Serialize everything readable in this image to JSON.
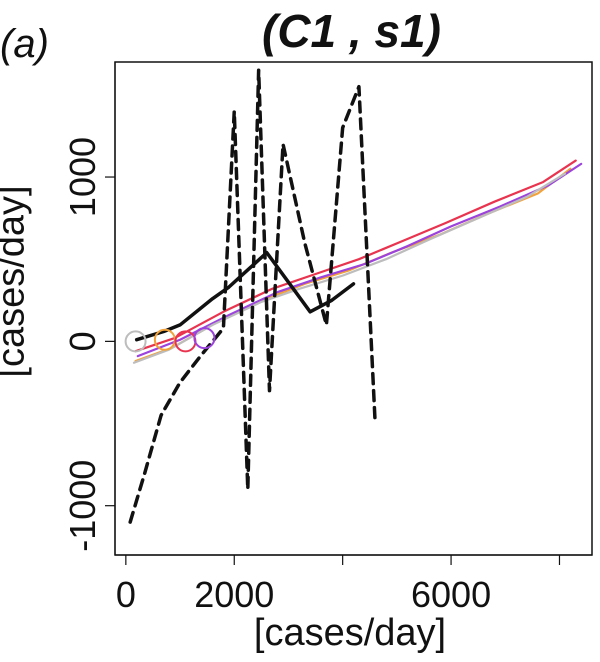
{
  "panel_label": "(a)",
  "title": "(C1 , s1)",
  "chart_data": {
    "type": "line",
    "xlabel": "[cases/day]",
    "ylabel": "[cases/day]",
    "xlim": [
      -200,
      8600
    ],
    "ylim": [
      -1300,
      1700
    ],
    "x_ticks": [
      0,
      2000,
      6000
    ],
    "x_tick_marks": [
      0,
      2000,
      4000,
      6000,
      8000
    ],
    "y_ticks": [
      -1000,
      0,
      1000
    ],
    "colors": {
      "gray": "#bdbdbd",
      "orange": "#f2a23a",
      "red": "#e8344f",
      "purple": "#9b43dc",
      "black": "#111111"
    },
    "series": [
      {
        "color": "orange",
        "x": [
          180,
          850,
          1700,
          2600,
          3300,
          4100,
          4900,
          5800,
          6700,
          7600,
          8200
        ],
        "y": [
          -120,
          -40,
          120,
          260,
          350,
          430,
          540,
          650,
          780,
          900,
          1050
        ]
      },
      {
        "color": "red",
        "x": [
          180,
          900,
          1800,
          2700,
          3500,
          4300,
          5100,
          5900,
          6800,
          7700,
          8300
        ],
        "y": [
          -60,
          20,
          180,
          320,
          410,
          500,
          610,
          720,
          850,
          970,
          1100
        ]
      },
      {
        "color": "purple",
        "x": [
          220,
          1000,
          1900,
          2800,
          3600,
          4400,
          5200,
          6000,
          6900,
          7800,
          8400
        ],
        "y": [
          -90,
          10,
          160,
          300,
          390,
          470,
          580,
          700,
          820,
          950,
          1080
        ]
      },
      {
        "color": "gray",
        "x": [
          150,
          800,
          1600,
          2500,
          3200,
          4000,
          4800,
          5600,
          6500,
          7400,
          8100
        ],
        "y": [
          -130,
          -50,
          100,
          240,
          320,
          400,
          500,
          620,
          750,
          880,
          1020
        ]
      },
      {
        "color": "black",
        "style": "solid",
        "x": [
          200,
          700,
          1000,
          1600,
          1900,
          2200,
          2600,
          3000,
          3400,
          3800,
          4200
        ],
        "y": [
          10,
          60,
          100,
          260,
          330,
          420,
          540,
          360,
          180,
          250,
          350
        ]
      },
      {
        "color": "black",
        "style": "dashed",
        "x": [
          80,
          350,
          650,
          1000,
          1400,
          1800,
          2000,
          2250,
          2450,
          2650,
          2900,
          3300,
          3700,
          4000,
          4300,
          4600
        ],
        "y": [
          -1100,
          -800,
          -450,
          -250,
          -80,
          80,
          1400,
          -900,
          1650,
          -300,
          1200,
          600,
          100,
          1300,
          1550,
          -500
        ]
      }
    ],
    "markers": [
      {
        "color": "gray",
        "x": 180,
        "y": 0
      },
      {
        "color": "orange",
        "x": 720,
        "y": 10
      },
      {
        "color": "red",
        "x": 1100,
        "y": 0
      },
      {
        "color": "purple",
        "x": 1450,
        "y": 20
      }
    ]
  }
}
